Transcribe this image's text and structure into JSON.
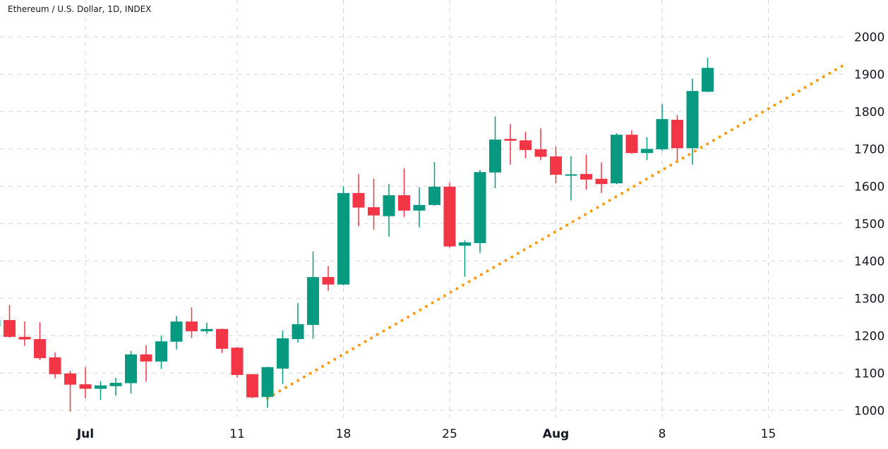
{
  "chart_data": {
    "type": "candlestick",
    "title": "Ethereum / U.S. Dollar, 1D, INDEX",
    "xlabel": "",
    "ylabel": "",
    "ylim": [
      1000,
      2000
    ],
    "yticks": [
      "1000",
      "1100",
      "1200",
      "1300",
      "1400",
      "1500",
      "1600",
      "1700",
      "1800",
      "1900",
      "2000"
    ],
    "xticks": [
      {
        "date": "Jul 1",
        "label": "Jul",
        "bold": true
      },
      {
        "date": "Jul 11",
        "label": "11"
      },
      {
        "date": "Jul 18",
        "label": "18"
      },
      {
        "date": "Jul 25",
        "label": "25"
      },
      {
        "date": "Aug 1",
        "label": "Aug",
        "bold": true
      },
      {
        "date": "Aug 8",
        "label": "8"
      },
      {
        "date": "Aug 15",
        "label": "15"
      }
    ],
    "grid": true,
    "colors": {
      "up": "#089981",
      "down": "#f23645",
      "trendline": "#ff9800",
      "grid": "#d1d4dc",
      "text": "#131722"
    },
    "candles": [
      {
        "date": "Jun 25",
        "o": 1225,
        "h": 1245,
        "l": 1222,
        "c": 1242
      },
      {
        "date": "Jun 26",
        "o": 1242,
        "h": 1282,
        "l": 1195,
        "c": 1197
      },
      {
        "date": "Jun 27",
        "o": 1197,
        "h": 1238,
        "l": 1173,
        "c": 1190
      },
      {
        "date": "Jun 28",
        "o": 1191,
        "h": 1236,
        "l": 1135,
        "c": 1140
      },
      {
        "date": "Jun 29",
        "o": 1142,
        "h": 1155,
        "l": 1086,
        "c": 1097
      },
      {
        "date": "Jun 30",
        "o": 1099,
        "h": 1106,
        "l": 997,
        "c": 1069
      },
      {
        "date": "Jul 1",
        "o": 1070,
        "h": 1116,
        "l": 1033,
        "c": 1058
      },
      {
        "date": "Jul 2",
        "o": 1058,
        "h": 1078,
        "l": 1028,
        "c": 1067
      },
      {
        "date": "Jul 3",
        "o": 1065,
        "h": 1087,
        "l": 1040,
        "c": 1074
      },
      {
        "date": "Jul 4",
        "o": 1073,
        "h": 1159,
        "l": 1045,
        "c": 1150
      },
      {
        "date": "Jul 5",
        "o": 1150,
        "h": 1174,
        "l": 1077,
        "c": 1131
      },
      {
        "date": "Jul 6",
        "o": 1131,
        "h": 1200,
        "l": 1111,
        "c": 1185
      },
      {
        "date": "Jul 7",
        "o": 1184,
        "h": 1253,
        "l": 1163,
        "c": 1238
      },
      {
        "date": "Jul 8",
        "o": 1238,
        "h": 1276,
        "l": 1194,
        "c": 1212
      },
      {
        "date": "Jul 9",
        "o": 1212,
        "h": 1235,
        "l": 1205,
        "c": 1218
      },
      {
        "date": "Jul 10",
        "o": 1218,
        "h": 1219,
        "l": 1154,
        "c": 1165
      },
      {
        "date": "Jul 11",
        "o": 1168,
        "h": 1170,
        "l": 1088,
        "c": 1095
      },
      {
        "date": "Jul 12",
        "o": 1097,
        "h": 1098,
        "l": 1033,
        "c": 1035
      },
      {
        "date": "Jul 13",
        "o": 1036,
        "h": 1117,
        "l": 1007,
        "c": 1116
      },
      {
        "date": "Jul 14",
        "o": 1112,
        "h": 1214,
        "l": 1071,
        "c": 1193
      },
      {
        "date": "Jul 15",
        "o": 1191,
        "h": 1287,
        "l": 1182,
        "c": 1231
      },
      {
        "date": "Jul 16",
        "o": 1229,
        "h": 1425,
        "l": 1192,
        "c": 1357
      },
      {
        "date": "Jul 17",
        "o": 1357,
        "h": 1387,
        "l": 1320,
        "c": 1337
      },
      {
        "date": "Jul 18",
        "o": 1337,
        "h": 1600,
        "l": 1335,
        "c": 1582
      },
      {
        "date": "Jul 19",
        "o": 1582,
        "h": 1633,
        "l": 1493,
        "c": 1543
      },
      {
        "date": "Jul 20",
        "o": 1544,
        "h": 1621,
        "l": 1484,
        "c": 1522
      },
      {
        "date": "Jul 21",
        "o": 1520,
        "h": 1606,
        "l": 1465,
        "c": 1576
      },
      {
        "date": "Jul 22",
        "o": 1576,
        "h": 1648,
        "l": 1518,
        "c": 1535
      },
      {
        "date": "Jul 23",
        "o": 1535,
        "h": 1597,
        "l": 1490,
        "c": 1550
      },
      {
        "date": "Jul 24",
        "o": 1550,
        "h": 1665,
        "l": 1548,
        "c": 1599
      },
      {
        "date": "Jul 25",
        "o": 1599,
        "h": 1610,
        "l": 1436,
        "c": 1439
      },
      {
        "date": "Jul 26",
        "o": 1441,
        "h": 1455,
        "l": 1358,
        "c": 1450
      },
      {
        "date": "Jul 27",
        "o": 1448,
        "h": 1644,
        "l": 1422,
        "c": 1638
      },
      {
        "date": "Jul 28",
        "o": 1637,
        "h": 1787,
        "l": 1595,
        "c": 1725
      },
      {
        "date": "Jul 29",
        "o": 1727,
        "h": 1767,
        "l": 1658,
        "c": 1722
      },
      {
        "date": "Jul 30",
        "o": 1723,
        "h": 1746,
        "l": 1675,
        "c": 1697
      },
      {
        "date": "Jul 31",
        "o": 1699,
        "h": 1755,
        "l": 1670,
        "c": 1679
      },
      {
        "date": "Aug 1",
        "o": 1680,
        "h": 1706,
        "l": 1608,
        "c": 1631
      },
      {
        "date": "Aug 2",
        "o": 1630,
        "h": 1680,
        "l": 1562,
        "c": 1632
      },
      {
        "date": "Aug 3",
        "o": 1633,
        "h": 1685,
        "l": 1591,
        "c": 1618
      },
      {
        "date": "Aug 4",
        "o": 1620,
        "h": 1664,
        "l": 1582,
        "c": 1606
      },
      {
        "date": "Aug 5",
        "o": 1608,
        "h": 1742,
        "l": 1606,
        "c": 1738
      },
      {
        "date": "Aug 6",
        "o": 1738,
        "h": 1750,
        "l": 1687,
        "c": 1689
      },
      {
        "date": "Aug 7",
        "o": 1689,
        "h": 1731,
        "l": 1670,
        "c": 1700
      },
      {
        "date": "Aug 8",
        "o": 1699,
        "h": 1820,
        "l": 1695,
        "c": 1780
      },
      {
        "date": "Aug 9",
        "o": 1778,
        "h": 1791,
        "l": 1670,
        "c": 1702
      },
      {
        "date": "Aug 10",
        "o": 1702,
        "h": 1888,
        "l": 1658,
        "c": 1855
      },
      {
        "date": "Aug 11",
        "o": 1853,
        "h": 1944,
        "l": 1852,
        "c": 1917
      }
    ],
    "trendline": {
      "style": "dotted",
      "from": {
        "date": "Jul 13",
        "price": 1033
      },
      "to": {
        "date": "Aug 20",
        "price": 1925
      }
    }
  }
}
